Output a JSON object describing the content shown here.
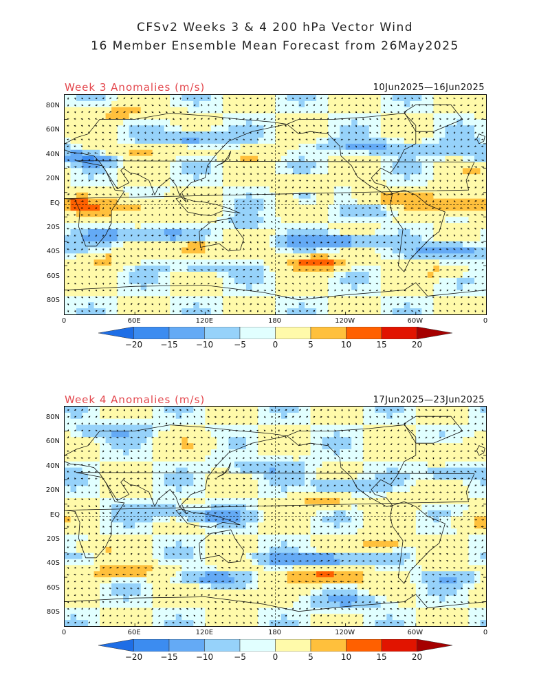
{
  "header": {
    "line1": "CFSv2 Weeks 3 & 4 200 hPa Vector Wind",
    "line2": "16 Member Ensemble Mean Forecast from 26May2025"
  },
  "panels": [
    {
      "title": "Week 3 Anomalies (m/s)",
      "dates": "10Jun2025—16Jun2025"
    },
    {
      "title": "Week 4 Anomalies (m/s)",
      "dates": "17Jun2025—23Jun2025"
    }
  ],
  "lat_labels": [
    "80N",
    "60N",
    "40N",
    "20N",
    "EQ",
    "20S",
    "40S",
    "60S",
    "80S"
  ],
  "lon_labels": [
    "0",
    "60E",
    "120E",
    "180",
    "120W",
    "60W",
    "0"
  ],
  "colorbar": {
    "labels": [
      "−20",
      "−15",
      "−10",
      "−5",
      "0",
      "5",
      "10",
      "15",
      "20"
    ],
    "colors": [
      "#1e6ee6",
      "#3c8cf0",
      "#64aaf5",
      "#96d2fa",
      "#e1ffff",
      "#fffaaa",
      "#ffc03c",
      "#ff6000",
      "#e11400",
      "#a50000"
    ]
  }
}
